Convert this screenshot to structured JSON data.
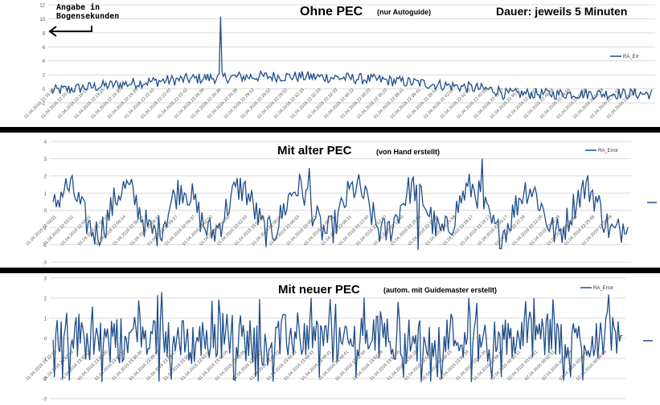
{
  "annotation": {
    "line1": "Angabe in",
    "line2": "Bogensekunden"
  },
  "duration_label": "Dauer: jeweils 5 Minuten",
  "colors": {
    "series": "#1f4e8c",
    "grid": "#d9d9d9",
    "axis_text": "#555555",
    "separator": "#000000"
  },
  "chart_data": [
    {
      "type": "line",
      "title": "Ohne PEC",
      "note": "(nur Autoguide)",
      "legend": "RA_Err",
      "legend_position": "right",
      "grid": true,
      "ylim": [
        -2,
        12
      ],
      "yticks": [
        -2,
        0,
        2,
        4,
        6,
        8,
        10,
        12
      ],
      "xtick_labels": [
        "01.04.2016 22:16:13",
        "01.04.2016 22:19:35",
        "01.04.2016 22:22:42",
        "01.04.2016 22:26:39",
        "01.04.2016 22:29:52",
        "01.04.2016 22:32:33",
        "01.04.2016 22:36:22",
        "01.04.2016 22:39:41",
        "01.04.2016 22:42:08",
        "01.04.2016 22:45:27",
        "01.04.2016 22:48:56",
        "01.04.2016 22:51:58"
      ],
      "x_points": 420,
      "y_values_summary": "RA error ~0 to 2.5 arcsec, rising toward middle, single spike of ~10.3 at sample ~118"
    },
    {
      "type": "line",
      "title": "Mit alter PEC",
      "note": "(von Hand erstellt)",
      "legend": "RA_Error",
      "legend_position": "right",
      "grid": true,
      "ylim": [
        -3,
        4
      ],
      "yticks": [
        -3,
        -2,
        -1,
        0,
        1,
        2,
        3,
        4
      ],
      "xtick_labels": [
        "01.04.2016 22:53:01",
        "01.04.2016 22:56:14",
        "01.04.2016 22:59:37",
        "01.04.2016 23:02:50",
        "01.04.2016 23:06:03",
        "01.04.2016 23:09:21",
        "01.04.2016 23:12:40",
        "01.04.2016 23:15:58",
        "01.04.2016 23:19:17",
        "01.04.2016 23:22:29",
        "01.04.2016 23:25:48"
      ],
      "x_points": 360,
      "y_values_summary": "periodic RA error oscillating roughly between -2.2 and 3.0 arcsec"
    },
    {
      "type": "line",
      "title": "Mit neuer PEC",
      "note": "(autom. mit Guidemaster erstellt)",
      "legend": "RA_Error",
      "legend_position": "right",
      "grid": true,
      "ylim": [
        -3,
        3
      ],
      "yticks": [
        -3,
        -2,
        -1,
        0,
        1,
        2,
        3
      ],
      "xtick_labels": [
        "01.04.2016 23:33:12",
        "01.04.2016 23:36:30",
        "01.04.2016 23:39:47",
        "01.04.2016 23:43:05",
        "01.04.2016 23:46:22",
        "01.04.2016 23:49:41",
        "01.04.2016 23:52:59",
        "01.04.2016 23:56:16",
        "01.04.2016 23:59:34",
        "02.04.2016 00:02:51",
        "02.04.2016 00:06:09"
      ],
      "x_points": 420,
      "y_values_summary": "noisy RA error mostly between -2 and 2.3 arcsec"
    }
  ]
}
